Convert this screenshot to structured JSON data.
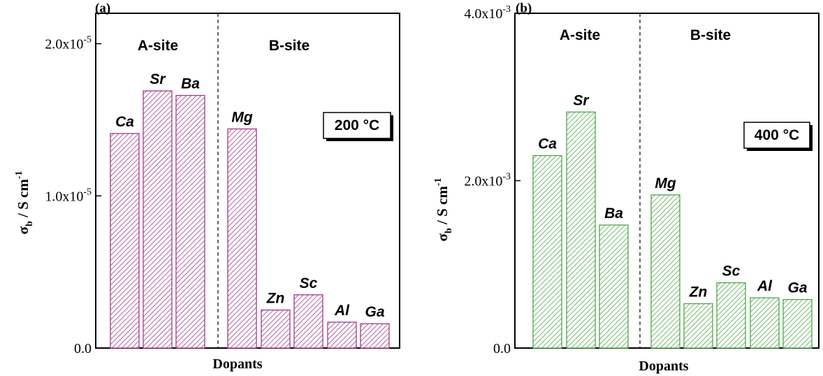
{
  "chart_data": [
    {
      "type": "bar",
      "panel_label": "(a)",
      "xlabel": "Dopants",
      "ylabel_main": "σ",
      "ylabel_sub": "b",
      "ylabel_unit": " / S cm",
      "ylabel_sup": "-1",
      "ylim": [
        0,
        2.2e-05
      ],
      "yticks": [
        {
          "value": 0,
          "label": "0.0"
        },
        {
          "value": 1e-05,
          "label": "1.0x10",
          "exp": "-5"
        },
        {
          "value": 2e-05,
          "label": "2.0x10",
          "exp": "-5"
        }
      ],
      "groups": [
        {
          "label": "A-site",
          "categories": [
            "Ca",
            "Sr",
            "Ba"
          ]
        },
        {
          "label": "B-site",
          "categories": [
            "Mg",
            "Zn",
            "Sc",
            "Al",
            "Ga"
          ]
        }
      ],
      "categories": [
        "Ca",
        "Sr",
        "Ba",
        "Mg",
        "Zn",
        "Sc",
        "Al",
        "Ga"
      ],
      "values": [
        1.41e-05,
        1.69e-05,
        1.66e-05,
        1.44e-05,
        2.5e-06,
        3.5e-06,
        1.7e-06,
        1.6e-06
      ],
      "annotation": "200 °C",
      "bar_color": "#a03a8c",
      "legend": "none",
      "grid": false
    },
    {
      "type": "bar",
      "panel_label": "(b)",
      "xlabel": "Dopants",
      "ylabel_main": "σ",
      "ylabel_sub": "b",
      "ylabel_unit": " / S cm",
      "ylabel_sup": "-1",
      "ylim": [
        0,
        0.004
      ],
      "yticks": [
        {
          "value": 0,
          "label": "0.0"
        },
        {
          "value": 0.002,
          "label": "2.0x10",
          "exp": "-3"
        },
        {
          "value": 0.004,
          "label": "4.0x10",
          "exp": "-3"
        }
      ],
      "groups": [
        {
          "label": "A-site",
          "categories": [
            "Ca",
            "Sr",
            "Ba"
          ]
        },
        {
          "label": "B-site",
          "categories": [
            "Mg",
            "Zn",
            "Sc",
            "Al",
            "Ga"
          ]
        }
      ],
      "categories": [
        "Ca",
        "Sr",
        "Ba",
        "Mg",
        "Zn",
        "Sc",
        "Al",
        "Ga"
      ],
      "values": [
        0.0023,
        0.00282,
        0.00147,
        0.00183,
        0.00053,
        0.00078,
        0.0006,
        0.00058
      ],
      "annotation": "400 °C",
      "bar_color": "#4fa64a",
      "legend": "none",
      "grid": false
    }
  ]
}
